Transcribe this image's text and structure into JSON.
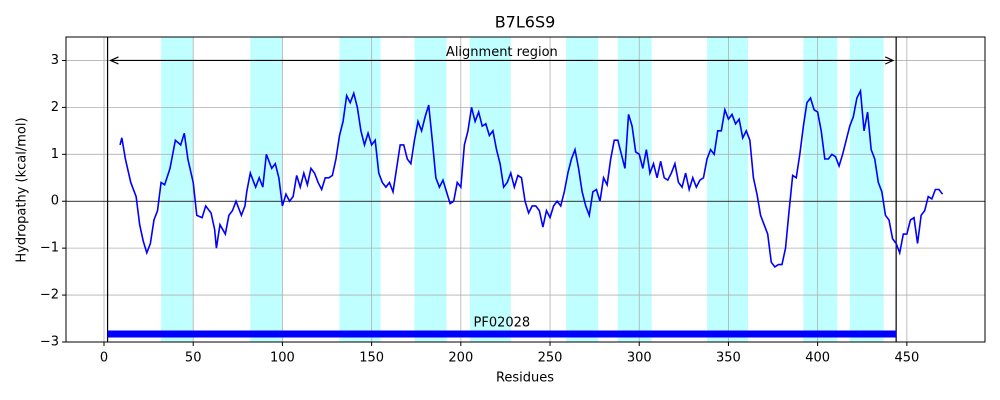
{
  "chart_data": {
    "type": "line",
    "title": "B7L6S9",
    "xlabel": "Residues",
    "ylabel": "Hydropathy (kcal/mol)",
    "x": [
      9,
      10,
      12,
      15,
      18,
      20,
      22,
      24,
      26,
      28,
      30,
      32,
      34,
      37,
      40,
      43,
      45,
      47,
      50,
      52,
      55,
      57,
      60,
      62,
      63,
      65,
      68,
      70,
      72,
      74,
      77,
      79,
      80,
      82,
      85,
      87,
      89,
      91,
      94,
      96,
      98,
      100,
      102,
      104,
      106,
      108,
      110,
      112,
      114,
      116,
      118,
      120,
      122,
      124,
      126,
      128,
      130,
      132,
      134,
      136,
      138,
      140,
      142,
      144,
      146,
      148,
      150,
      152,
      154,
      156,
      158,
      160,
      162,
      164,
      166,
      168,
      170,
      172,
      174,
      176,
      178,
      180,
      182,
      184,
      186,
      188,
      190,
      192,
      194,
      196,
      198,
      200,
      202,
      204,
      206,
      208,
      210,
      212,
      214,
      216,
      218,
      220,
      222,
      224,
      226,
      228,
      230,
      232,
      234,
      236,
      238,
      240,
      242,
      244,
      246,
      248,
      250,
      252,
      254,
      256,
      258,
      260,
      262,
      264,
      266,
      268,
      270,
      272,
      274,
      276,
      278,
      280,
      282,
      284,
      286,
      288,
      290,
      292,
      294,
      296,
      298,
      300,
      302,
      304,
      306,
      308,
      310,
      312,
      314,
      316,
      318,
      320,
      322,
      324,
      326,
      328,
      330,
      332,
      334,
      336,
      338,
      340,
      342,
      344,
      346,
      348,
      350,
      352,
      354,
      356,
      358,
      360,
      362,
      364,
      366,
      368,
      370,
      372,
      374,
      376,
      378,
      380,
      382,
      384,
      386,
      388,
      390,
      392,
      394,
      396,
      398,
      400,
      402,
      404,
      406,
      408,
      410,
      412,
      414,
      416,
      418,
      420,
      422,
      424,
      426,
      428,
      430,
      432,
      434,
      436,
      438,
      440,
      442,
      444,
      446,
      448,
      450,
      452,
      454,
      456,
      458,
      460,
      462,
      464,
      466,
      468,
      470
    ],
    "values": [
      1.2,
      1.35,
      0.9,
      0.4,
      0.1,
      -0.5,
      -0.85,
      -1.1,
      -0.9,
      -0.4,
      -0.2,
      0.4,
      0.35,
      0.7,
      1.3,
      1.2,
      1.45,
      0.9,
      0.4,
      -0.3,
      -0.35,
      -0.1,
      -0.25,
      -0.6,
      -1.0,
      -0.5,
      -0.7,
      -0.3,
      -0.2,
      0.0,
      -0.3,
      -0.1,
      0.2,
      0.6,
      0.3,
      0.5,
      0.3,
      1.0,
      0.7,
      0.8,
      0.5,
      -0.1,
      0.15,
      0.0,
      0.1,
      0.55,
      0.3,
      0.6,
      0.35,
      0.7,
      0.6,
      0.4,
      0.25,
      0.5,
      0.5,
      0.55,
      0.9,
      1.4,
      1.7,
      2.25,
      2.1,
      2.3,
      2.0,
      1.5,
      1.2,
      1.45,
      1.2,
      1.3,
      0.6,
      0.4,
      0.3,
      0.4,
      0.2,
      0.7,
      1.2,
      1.2,
      0.9,
      0.8,
      1.3,
      1.7,
      1.5,
      1.8,
      2.05,
      1.3,
      0.5,
      0.3,
      0.45,
      0.2,
      -0.05,
      0.0,
      0.4,
      0.3,
      1.2,
      1.5,
      2.0,
      1.7,
      1.9,
      1.6,
      1.65,
      1.4,
      1.5,
      1.1,
      0.8,
      0.3,
      0.4,
      0.6,
      0.3,
      0.55,
      0.5,
      0.0,
      -0.25,
      -0.1,
      -0.1,
      -0.2,
      -0.55,
      -0.2,
      -0.35,
      -0.1,
      0.0,
      -0.1,
      0.2,
      0.6,
      0.9,
      1.1,
      0.7,
      0.2,
      -0.1,
      -0.3,
      0.2,
      0.25,
      0.0,
      0.5,
      0.35,
      0.9,
      1.3,
      1.3,
      1.0,
      0.7,
      1.85,
      1.6,
      1.05,
      1.0,
      0.7,
      1.1,
      0.6,
      0.8,
      0.5,
      0.85,
      0.5,
      0.45,
      0.6,
      0.8,
      0.4,
      0.3,
      0.6,
      0.25,
      0.5,
      0.3,
      0.45,
      0.5,
      0.9,
      1.1,
      1.0,
      1.5,
      1.5,
      1.95,
      1.75,
      1.85,
      1.65,
      1.75,
      1.35,
      1.5,
      1.3,
      0.5,
      0.15,
      -0.3,
      -0.5,
      -0.7,
      -1.3,
      -1.4,
      -1.35,
      -1.35,
      -1.0,
      -0.2,
      0.55,
      0.5,
      1.0,
      1.6,
      2.1,
      2.2,
      1.95,
      1.9,
      1.5,
      0.9,
      0.9,
      1.0,
      0.95,
      0.75,
      1.0,
      1.3,
      1.6,
      1.8,
      2.2,
      2.35,
      1.5,
      1.9,
      1.1,
      0.9,
      0.4,
      0.2,
      -0.3,
      -0.4,
      -0.8,
      -0.9,
      -1.1,
      -0.7,
      -0.7,
      -0.4,
      -0.35,
      -0.9,
      -0.3,
      -0.2,
      0.1,
      0.05,
      0.25,
      0.25,
      0.15
    ],
    "color": "#0000ff",
    "shaded_regions": [
      [
        32,
        50
      ],
      [
        82,
        100
      ],
      [
        132,
        155
      ],
      [
        174,
        192
      ],
      [
        205,
        228
      ],
      [
        259,
        277
      ],
      [
        288,
        307
      ],
      [
        338,
        361
      ],
      [
        392,
        411
      ],
      [
        418,
        437
      ]
    ],
    "shade_color": "#c0ffff",
    "hlines": [
      0
    ],
    "alignment": {
      "text": "Alignment region",
      "x": [
        2,
        444
      ],
      "y": 3
    },
    "domain": {
      "text": "PF02028",
      "x": [
        2,
        444
      ],
      "y": -2.83,
      "color": "#0000ff"
    },
    "xlim": [
      -21.3,
      493.8
    ],
    "ylim": [
      -3,
      3.5
    ],
    "xticks": [
      0,
      50,
      100,
      150,
      200,
      250,
      300,
      350,
      400,
      450
    ],
    "yticks": [
      {
        "value": -3,
        "label": "−3"
      },
      {
        "value": -2,
        "label": "−2"
      },
      {
        "value": -1,
        "label": "−1"
      },
      0,
      1,
      2,
      3
    ],
    "grid": true
  }
}
